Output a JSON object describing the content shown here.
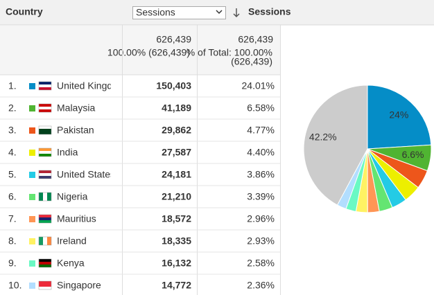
{
  "header": {
    "dimension": "Country",
    "metric_select": "Sessions",
    "metric": "Sessions"
  },
  "totals": {
    "sessions": "626,439",
    "sessions_note": "100.00% (626,439)",
    "percent": "626,439",
    "percent_note": "% of Total: 100.00%",
    "percent_note2": "(626,439)"
  },
  "table": {
    "rows": [
      [
        "1.",
        "United Kingdom",
        "150,403",
        "24.01%"
      ],
      [
        "2.",
        "Malaysia",
        "41,189",
        "6.58%"
      ],
      [
        "3.",
        "Pakistan",
        "29,862",
        "4.77%"
      ],
      [
        "4.",
        "India",
        "27,587",
        "4.40%"
      ],
      [
        "5.",
        "United States",
        "24,181",
        "3.86%"
      ],
      [
        "6.",
        "Nigeria",
        "21,210",
        "3.39%"
      ],
      [
        "7.",
        "Mauritius",
        "18,572",
        "2.96%"
      ],
      [
        "8.",
        "Ireland",
        "18,335",
        "2.93%"
      ],
      [
        "9.",
        "Kenya",
        "16,132",
        "2.58%"
      ],
      [
        "10.",
        "Singapore",
        "14,772",
        "2.36%"
      ]
    ]
  },
  "chart_data": {
    "type": "pie",
    "values": [
      24.01,
      6.58,
      4.77,
      4.4,
      3.86,
      3.39,
      2.96,
      2.93,
      2.58,
      2.36,
      42.16
    ],
    "value_labels": [
      "24%",
      "6.6%",
      null,
      null,
      null,
      null,
      null,
      null,
      null,
      null,
      "42.2%"
    ],
    "colors": [
      "#058dc7",
      "#50b432",
      "#ed561b",
      "#edef00",
      "#24cbe5",
      "#64e572",
      "#ff9655",
      "#fff263",
      "#6af9c4",
      "#b2deff",
      "#cccccc"
    ]
  }
}
